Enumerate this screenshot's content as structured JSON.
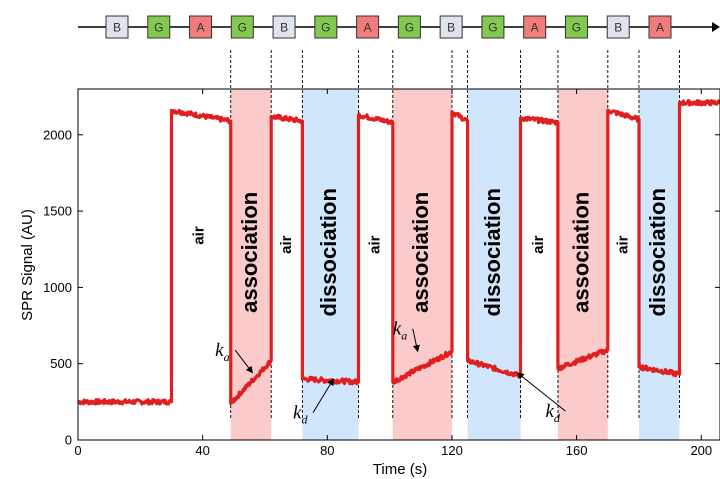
{
  "sequence": {
    "items": [
      {
        "label": "B",
        "color": "#dfe3ee"
      },
      {
        "label": "G",
        "color": "#84c94f"
      },
      {
        "label": "A",
        "color": "#f27c7a"
      },
      {
        "label": "G",
        "color": "#84c94f"
      },
      {
        "label": "B",
        "color": "#dfe3ee"
      },
      {
        "label": "G",
        "color": "#84c94f"
      },
      {
        "label": "A",
        "color": "#f27c7a"
      },
      {
        "label": "G",
        "color": "#84c94f"
      },
      {
        "label": "B",
        "color": "#dfe3ee"
      },
      {
        "label": "G",
        "color": "#84c94f"
      },
      {
        "label": "A",
        "color": "#f27c7a"
      },
      {
        "label": "G",
        "color": "#84c94f"
      },
      {
        "label": "B",
        "color": "#dfe3ee"
      },
      {
        "label": "A",
        "color": "#f27c7a"
      }
    ]
  },
  "chart_data": {
    "type": "line",
    "xlabel": "Time (s)",
    "ylabel": "SPR Signal (AU)",
    "xlim": [
      0,
      206
    ],
    "ylim": [
      0,
      2300
    ],
    "xticks": [
      0,
      40,
      80,
      120,
      160,
      200
    ],
    "yticks": [
      0,
      500,
      1000,
      1500,
      2000
    ],
    "grid": false,
    "line_color": "#e02020",
    "regions": [
      {
        "x0": 49,
        "x1": 62,
        "kind": "association",
        "color": "#fbcaca"
      },
      {
        "x0": 72,
        "x1": 90,
        "kind": "dissociation",
        "color": "#cfe6fb"
      },
      {
        "x0": 101,
        "x1": 120,
        "kind": "association",
        "color": "#fbcaca"
      },
      {
        "x0": 125,
        "x1": 142,
        "kind": "dissociation",
        "color": "#cfe6fb"
      },
      {
        "x0": 154,
        "x1": 170,
        "kind": "association",
        "color": "#fbcaca"
      },
      {
        "x0": 180,
        "x1": 193,
        "kind": "dissociation",
        "color": "#cfe6fb"
      }
    ],
    "dashed_lines_x": [
      49,
      62,
      72,
      90,
      101,
      120,
      125,
      142,
      154,
      170,
      180,
      193
    ],
    "phase_labels": [
      {
        "text": "air",
        "x": 39,
        "y": 1340,
        "size": "small"
      },
      {
        "text": "association",
        "x": 55.5,
        "y": 1230,
        "size": "big"
      },
      {
        "text": "air",
        "x": 67,
        "y": 1280,
        "size": "small"
      },
      {
        "text": "dissociation",
        "x": 81,
        "y": 1230,
        "size": "big"
      },
      {
        "text": "air",
        "x": 95.5,
        "y": 1280,
        "size": "small"
      },
      {
        "text": "association",
        "x": 110.5,
        "y": 1230,
        "size": "big"
      },
      {
        "text": "dissociation",
        "x": 133.5,
        "y": 1230,
        "size": "big"
      },
      {
        "text": "air",
        "x": 148,
        "y": 1280,
        "size": "small"
      },
      {
        "text": "association",
        "x": 162,
        "y": 1230,
        "size": "big"
      },
      {
        "text": "air",
        "x": 175,
        "y": 1280,
        "size": "small"
      },
      {
        "text": "dissociation",
        "x": 186.5,
        "y": 1230,
        "size": "big"
      }
    ],
    "annotations": [
      {
        "main": "k",
        "sub": "a",
        "x": 44,
        "y": 550,
        "arrow_to": [
          56,
          440
        ]
      },
      {
        "main": "k",
        "sub": "d",
        "x": 69,
        "y": 140,
        "arrow_to": [
          82,
          400
        ]
      },
      {
        "main": "k",
        "sub": "a",
        "x": 101,
        "y": 690,
        "arrow_to": [
          109,
          580
        ]
      },
      {
        "main": "k",
        "sub": "d",
        "x": 150,
        "y": 150,
        "arrow_to": [
          141,
          440
        ]
      }
    ],
    "series": [
      {
        "segments": [
          [
            [
              0,
              250
            ],
            [
              30,
              250
            ]
          ],
          [
            [
              30,
              2160
            ],
            [
              49,
              2090
            ]
          ],
          [
            [
              49,
              240
            ],
            [
              62,
              520
            ]
          ],
          [
            [
              62,
              2120
            ],
            [
              72,
              2090
            ]
          ],
          [
            [
              72,
              400
            ],
            [
              90,
              380
            ]
          ],
          [
            [
              90,
              2130
            ],
            [
              101,
              2080
            ]
          ],
          [
            [
              101,
              380
            ],
            [
              120,
              580
            ]
          ],
          [
            [
              120,
              2150
            ],
            [
              125,
              2090
            ]
          ],
          [
            [
              125,
              520
            ],
            [
              142,
              420
            ]
          ],
          [
            [
              142,
              2110
            ],
            [
              154,
              2080
            ]
          ],
          [
            [
              154,
              470
            ],
            [
              170,
              590
            ]
          ],
          [
            [
              170,
              2160
            ],
            [
              180,
              2100
            ]
          ],
          [
            [
              180,
              480
            ],
            [
              193,
              430
            ]
          ],
          [
            [
              193,
              2210
            ],
            [
              206,
              2210
            ]
          ]
        ]
      }
    ]
  }
}
